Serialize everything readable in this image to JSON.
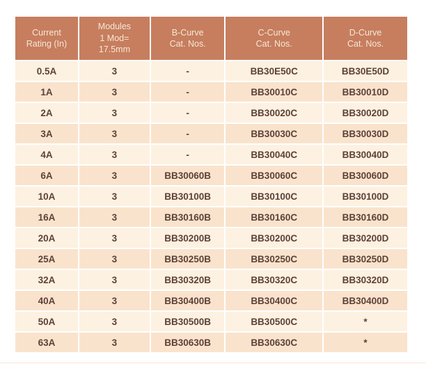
{
  "table": {
    "columns": [
      {
        "label": "Current\nRating (In)"
      },
      {
        "label": "Modules\n1 Mod=\n17.5mm"
      },
      {
        "label": "B-Curve\nCat. Nos."
      },
      {
        "label": "C-Curve\nCat. Nos."
      },
      {
        "label": "D-Curve\nCat. Nos."
      }
    ],
    "rows": [
      [
        "0.5A",
        "3",
        "-",
        "BB30E50C",
        "BB30E50D"
      ],
      [
        "1A",
        "3",
        "-",
        "BB30010C",
        "BB30010D"
      ],
      [
        "2A",
        "3",
        "-",
        "BB30020C",
        "BB30020D"
      ],
      [
        "3A",
        "3",
        "-",
        "BB30030C",
        "BB30030D"
      ],
      [
        "4A",
        "3",
        "-",
        "BB30040C",
        "BB30040D"
      ],
      [
        "6A",
        "3",
        "BB30060B",
        "BB30060C",
        "BB30060D"
      ],
      [
        "10A",
        "3",
        "BB30100B",
        "BB30100C",
        "BB30100D"
      ],
      [
        "16A",
        "3",
        "BB30160B",
        "BB30160C",
        "BB30160D"
      ],
      [
        "20A",
        "3",
        "BB30200B",
        "BB30200C",
        "BB30200D"
      ],
      [
        "25A",
        "3",
        "BB30250B",
        "BB30250C",
        "BB30250D"
      ],
      [
        "32A",
        "3",
        "BB30320B",
        "BB30320C",
        "BB30320D"
      ],
      [
        "40A",
        "3",
        "BB30400B",
        "BB30400C",
        "BB30400D"
      ],
      [
        "50A",
        "3",
        "BB30500B",
        "BB30500C",
        "*"
      ],
      [
        "63A",
        "3",
        "BB30630B",
        "BB30630C",
        "*"
      ]
    ],
    "colors": {
      "header_bg": "#C67E5F",
      "header_text": "#F7E7D4",
      "row_light": "#FDF1E1",
      "row_dark": "#FAE3CC",
      "body_text": "#5E4138"
    }
  }
}
